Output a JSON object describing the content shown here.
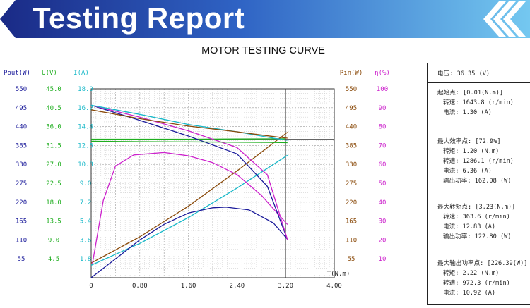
{
  "header": {
    "title": "Testing Report"
  },
  "chart_data": {
    "type": "line",
    "title": "MOTOR TESTING CURVE",
    "xlabel": "T(N.m)",
    "xlim": [
      0,
      4.0
    ],
    "x_ticks": [
      "0",
      "0.80",
      "1.60",
      "2.40",
      "3.20",
      "4.00"
    ],
    "grid": true,
    "left_axes": [
      {
        "label": "Pout(W)",
        "color": "#1a1a9a",
        "ticks": [
          "550",
          "495",
          "440",
          "385",
          "330",
          "275",
          "220",
          "165",
          "110",
          "55"
        ],
        "ylim": [
          0,
          605
        ]
      },
      {
        "label": "U(V)",
        "color": "#1fae1f",
        "ticks": [
          "45.0",
          "40.5",
          "36.0",
          "31.5",
          "27.0",
          "22.5",
          "18.0",
          "13.5",
          "9.0",
          "4.5"
        ],
        "ylim": [
          0,
          49.5
        ]
      },
      {
        "label": "I(A)",
        "color": "#17b8c8",
        "ticks": [
          "18.0",
          "16.2",
          "14.4",
          "12.6",
          "10.8",
          "9.0",
          "7.2",
          "5.4",
          "3.6",
          "1.8"
        ],
        "ylim": [
          0,
          19.8
        ]
      }
    ],
    "right_axes": [
      {
        "label": "Pin(W)",
        "color": "#8a4a0a",
        "ticks": [
          "550",
          "495",
          "440",
          "385",
          "330",
          "275",
          "220",
          "165",
          "110",
          "55"
        ],
        "ylim": [
          0,
          605
        ]
      },
      {
        "label": "η(%)",
        "color": "#cc22cc",
        "ticks": [
          "100",
          "90",
          "80",
          "70",
          "60",
          "50",
          "40",
          "30",
          "20",
          "10"
        ],
        "ylim": [
          0,
          110
        ]
      }
    ],
    "series": [
      {
        "axis": "U",
        "color": "#1fae1f",
        "x": [
          0,
          0.8,
          1.6,
          2.4,
          3.2
        ],
        "values": [
          36.3,
          36.3,
          36.3,
          36.35,
          36.4
        ]
      },
      {
        "axis": "I",
        "color": "#17b8c8",
        "x": [
          0,
          0.8,
          1.6,
          2.4,
          3.23
        ],
        "values": [
          1.3,
          3.6,
          6.3,
          9.4,
          12.83
        ]
      },
      {
        "axis": "Pin",
        "color": "#8a4a0a",
        "x": [
          0,
          0.8,
          1.6,
          2.4,
          3.23
        ],
        "values": [
          47,
          131,
          229,
          342,
          466
        ]
      },
      {
        "axis": "Pout",
        "color": "#1a1a9a",
        "x": [
          0,
          0.4,
          0.8,
          1.2,
          1.6,
          2.0,
          2.22,
          2.6,
          3.0,
          3.23
        ],
        "values": [
          0,
          60,
          121,
          171,
          207,
          224,
          226,
          217,
          175,
          123
        ]
      },
      {
        "axis": "Eff",
        "color": "#cc22cc",
        "x": [
          0.02,
          0.2,
          0.4,
          0.7,
          1.2,
          1.6,
          2.0,
          2.4,
          2.8,
          3.23
        ],
        "values": [
          8,
          45,
          65,
          71.5,
          72.9,
          71,
          67,
          60,
          48,
          31
        ]
      },
      {
        "axis": "Speed",
        "color": "#1a1a9a",
        "x": [
          0,
          0.8,
          1.6,
          2.4,
          2.9,
          3.23
        ],
        "values": [
          1643.8,
          1500,
          1350,
          1180,
          870,
          363.6
        ]
      },
      {
        "axis": "Speed",
        "color": "#cc22cc",
        "x": [
          0,
          0.8,
          1.6,
          2.4,
          2.9,
          3.23
        ],
        "values": [
          1643.8,
          1530,
          1400,
          1240,
          980,
          363.6
        ]
      },
      {
        "axis": "Speed",
        "color": "#17b8c8",
        "x": [
          0,
          0.8,
          1.6,
          2.4,
          3.0,
          3.23
        ],
        "values": [
          1643.8,
          1556,
          1460,
          1390,
          1330,
          1310
        ]
      },
      {
        "axis": "Speed",
        "color": "#1fae1f",
        "x": [
          0,
          0.8,
          1.6,
          2.4,
          3.0,
          3.23
        ],
        "values": [
          1300,
          1296,
          1294,
          1291,
          1288,
          1286.1
        ]
      },
      {
        "axis": "Speed",
        "color": "#8a4a0a",
        "x": [
          0,
          0.8,
          1.6,
          2.4,
          3.0,
          3.23
        ],
        "values": [
          1600,
          1515,
          1445,
          1390,
          1345,
          1330
        ]
      }
    ]
  },
  "info": {
    "voltage": "电压:  36.35 (V)",
    "start": {
      "title": "起始点: [0.01(N.m)]",
      "l1": "转速: 1643.8 (r/min)",
      "l2": "电流: 1.30 (A)"
    },
    "max_eff": {
      "title": "最大效率点: [72.9%]",
      "l1": "转矩: 1.20 (N.m)",
      "l2": "转速: 1286.1 (r/min)",
      "l3": "电流: 6.36 (A)",
      "l4": "输出功率: 162.08 (W)"
    },
    "max_torque": {
      "title": "最大转矩点: [3.23(N.m)]",
      "l1": "转速: 363.6 (r/min)",
      "l2": "电流: 12.83 (A)",
      "l3": "输出功率: 122.80 (W)"
    },
    "max_power": {
      "title": "最大输出功率点: [226.39(W)]",
      "l1": "转矩: 2.22 (N.m)",
      "l2": "转速: 972.3 (r/min)",
      "l3": "电流: 10.92 (A)"
    }
  },
  "colors": {
    "banner_dark": "#1f2f8c",
    "banner_light": "#6ec3ee"
  }
}
